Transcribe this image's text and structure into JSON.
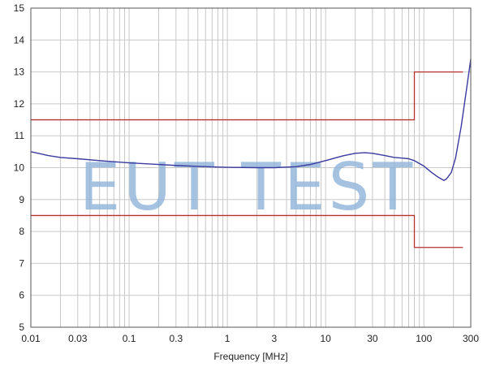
{
  "chart_data": {
    "type": "line",
    "title": "",
    "xlabel": "Frequency [MHz]",
    "ylabel": "",
    "x_scale": "log",
    "xlim": [
      0.01,
      300
    ],
    "ylim": [
      5,
      15
    ],
    "grid": true,
    "x_ticks": [
      {
        "value": 0.01,
        "label": "0.01"
      },
      {
        "value": 0.03,
        "label": "0.03"
      },
      {
        "value": 0.1,
        "label": "0.1"
      },
      {
        "value": 0.3,
        "label": "0.3"
      },
      {
        "value": 1,
        "label": "1"
      },
      {
        "value": 3,
        "label": "3"
      },
      {
        "value": 10,
        "label": "10"
      },
      {
        "value": 30,
        "label": "30"
      },
      {
        "value": 100,
        "label": "100"
      },
      {
        "value": 300,
        "label": "300"
      }
    ],
    "y_ticks": [
      {
        "value": 5,
        "label": "5"
      },
      {
        "value": 6,
        "label": "6"
      },
      {
        "value": 7,
        "label": "7"
      },
      {
        "value": 8,
        "label": "8"
      },
      {
        "value": 9,
        "label": "9"
      },
      {
        "value": 10,
        "label": "10"
      },
      {
        "value": 11,
        "label": "11"
      },
      {
        "value": 12,
        "label": "12"
      },
      {
        "value": 13,
        "label": "13"
      },
      {
        "value": 14,
        "label": "14"
      },
      {
        "value": 15,
        "label": "15"
      }
    ],
    "series": [
      {
        "color": "#3a3aa0",
        "points": [
          [
            0.01,
            10.5
          ],
          [
            0.015,
            10.38
          ],
          [
            0.02,
            10.32
          ],
          [
            0.03,
            10.28
          ],
          [
            0.05,
            10.22
          ],
          [
            0.1,
            10.15
          ],
          [
            0.2,
            10.1
          ],
          [
            0.3,
            10.07
          ],
          [
            0.5,
            10.04
          ],
          [
            1,
            10.01
          ],
          [
            2,
            10.0
          ],
          [
            3,
            10.0
          ],
          [
            5,
            10.03
          ],
          [
            7,
            10.1
          ],
          [
            10,
            10.22
          ],
          [
            15,
            10.37
          ],
          [
            20,
            10.45
          ],
          [
            25,
            10.47
          ],
          [
            30,
            10.45
          ],
          [
            40,
            10.38
          ],
          [
            50,
            10.32
          ],
          [
            60,
            10.3
          ],
          [
            70,
            10.28
          ],
          [
            80,
            10.22
          ],
          [
            100,
            10.05
          ],
          [
            120,
            9.85
          ],
          [
            140,
            9.7
          ],
          [
            160,
            9.6
          ],
          [
            170,
            9.65
          ],
          [
            190,
            9.85
          ],
          [
            210,
            10.3
          ],
          [
            240,
            11.3
          ],
          [
            270,
            12.4
          ],
          [
            300,
            13.4
          ]
        ]
      },
      {
        "color": "#b83030",
        "points": [
          [
            0.01,
            11.5
          ],
          [
            80,
            11.5
          ],
          [
            80,
            13.0
          ],
          [
            250,
            13.0
          ]
        ]
      },
      {
        "color": "#b83030",
        "points": [
          [
            0.01,
            8.5
          ],
          [
            80,
            8.5
          ],
          [
            80,
            7.5
          ],
          [
            250,
            7.5
          ]
        ]
      }
    ],
    "watermark": {
      "text": "EUT TEST",
      "color": "#8fb4d9"
    },
    "colors": {
      "grid": "#c8c8c8",
      "axis": "#555555",
      "background": "#ffffff"
    }
  }
}
